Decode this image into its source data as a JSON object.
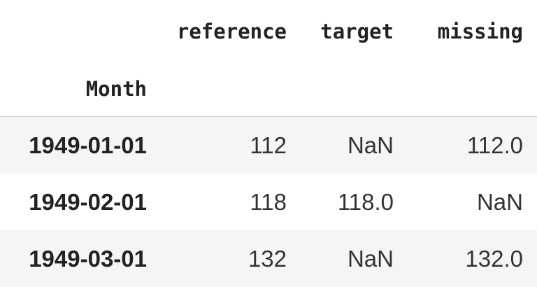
{
  "table": {
    "columns": [
      "reference",
      "target",
      "missing"
    ],
    "index_name": "Month",
    "rows": [
      {
        "index": "1949-01-01",
        "reference": "112",
        "target": "NaN",
        "missing": "112.0"
      },
      {
        "index": "1949-02-01",
        "reference": "118",
        "target": "118.0",
        "missing": "NaN"
      },
      {
        "index": "1949-03-01",
        "reference": "132",
        "target": "NaN",
        "missing": "132.0"
      }
    ]
  },
  "colors": {
    "stripe": "#f5f5f5",
    "text": "#333333",
    "header_border": "#d4d4d4"
  }
}
